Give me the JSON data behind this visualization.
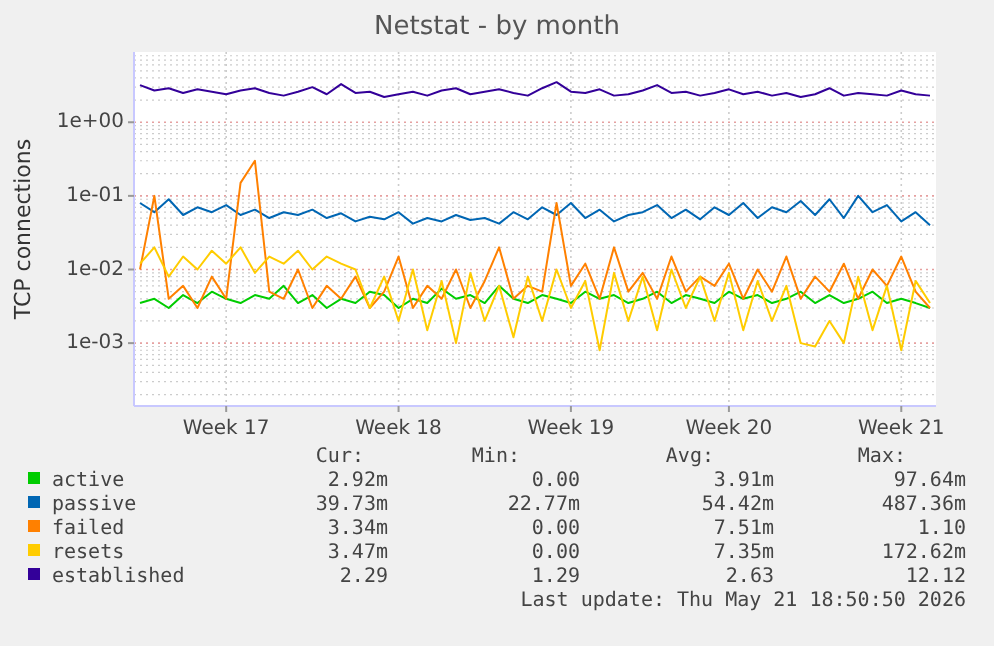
{
  "chart_data": {
    "type": "line",
    "title": "Netstat - by month",
    "ylabel": "TCP connections",
    "log": "y",
    "grid": true,
    "legend": "bottom",
    "ylim": [
      0.00014,
      9
    ],
    "yticks": [
      {
        "value": 0.001,
        "label": "1e-03"
      },
      {
        "value": 0.01,
        "label": "1e-02"
      },
      {
        "value": 0.1,
        "label": "1e-01"
      },
      {
        "value": 1,
        "label": "1e+00"
      }
    ],
    "categories": [
      null,
      null,
      null,
      null,
      null,
      null,
      "Week 17",
      null,
      null,
      null,
      null,
      null,
      null,
      null,
      null,
      null,
      null,
      null,
      "Week 18",
      null,
      null,
      null,
      null,
      null,
      null,
      null,
      null,
      null,
      null,
      null,
      "Week 19",
      null,
      null,
      null,
      null,
      null,
      null,
      null,
      null,
      null,
      null,
      "Week 20",
      null,
      null,
      null,
      null,
      null,
      null,
      null,
      null,
      null,
      null,
      null,
      "Week 21",
      null,
      null
    ],
    "series": [
      {
        "name": "active",
        "color": "#00cc00",
        "values": [
          0.0035,
          0.004,
          0.003,
          0.0045,
          0.0035,
          0.005,
          0.004,
          0.0035,
          0.0045,
          0.004,
          0.006,
          0.0035,
          0.0045,
          0.003,
          0.004,
          0.0035,
          0.005,
          0.0045,
          0.003,
          0.004,
          0.0035,
          0.0055,
          0.004,
          0.0045,
          0.0035,
          0.006,
          0.004,
          0.0035,
          0.0045,
          0.004,
          0.0035,
          0.005,
          0.004,
          0.0045,
          0.0035,
          0.004,
          0.005,
          0.0035,
          0.0045,
          0.004,
          0.0035,
          0.005,
          0.004,
          0.0045,
          0.0035,
          0.004,
          0.005,
          0.0035,
          0.0045,
          0.0035,
          0.004,
          0.005,
          0.0035,
          0.004,
          0.0035,
          0.003
        ]
      },
      {
        "name": "passive",
        "color": "#0066b3",
        "values": [
          0.08,
          0.06,
          0.09,
          0.055,
          0.07,
          0.06,
          0.075,
          0.055,
          0.065,
          0.05,
          0.06,
          0.055,
          0.065,
          0.05,
          0.058,
          0.045,
          0.052,
          0.048,
          0.06,
          0.042,
          0.05,
          0.045,
          0.055,
          0.047,
          0.05,
          0.042,
          0.06,
          0.048,
          0.07,
          0.055,
          0.08,
          0.05,
          0.065,
          0.045,
          0.055,
          0.06,
          0.075,
          0.05,
          0.065,
          0.048,
          0.07,
          0.055,
          0.08,
          0.05,
          0.07,
          0.06,
          0.085,
          0.055,
          0.09,
          0.05,
          0.1,
          0.06,
          0.075,
          0.045,
          0.06,
          0.04
        ]
      },
      {
        "name": "failed",
        "color": "#ff8000",
        "values": [
          0.01,
          0.1,
          0.004,
          0.006,
          0.003,
          0.008,
          0.004,
          0.15,
          0.3,
          0.005,
          0.004,
          0.01,
          0.003,
          0.006,
          0.004,
          0.008,
          0.003,
          0.005,
          0.015,
          0.003,
          0.006,
          0.004,
          0.01,
          0.003,
          0.007,
          0.02,
          0.004,
          0.006,
          0.005,
          0.08,
          0.006,
          0.012,
          0.004,
          0.02,
          0.005,
          0.009,
          0.004,
          0.015,
          0.005,
          0.008,
          0.006,
          0.012,
          0.004,
          0.01,
          0.005,
          0.015,
          0.004,
          0.008,
          0.005,
          0.012,
          0.004,
          0.01,
          0.006,
          0.015,
          0.005,
          0.003
        ]
      },
      {
        "name": "resets",
        "color": "#ffcc00",
        "values": [
          0.012,
          0.02,
          0.008,
          0.015,
          0.01,
          0.018,
          0.012,
          0.02,
          0.009,
          0.015,
          0.012,
          0.018,
          0.01,
          0.015,
          0.012,
          0.01,
          0.003,
          0.008,
          0.002,
          0.01,
          0.0015,
          0.007,
          0.001,
          0.009,
          0.002,
          0.006,
          0.0012,
          0.008,
          0.002,
          0.01,
          0.003,
          0.007,
          0.0008,
          0.009,
          0.002,
          0.008,
          0.0015,
          0.01,
          0.003,
          0.008,
          0.002,
          0.009,
          0.0015,
          0.007,
          0.002,
          0.006,
          0.001,
          0.0009,
          0.002,
          0.001,
          0.008,
          0.0015,
          0.006,
          0.0008,
          0.007,
          0.0035
        ]
      },
      {
        "name": "established",
        "color": "#330099",
        "values": [
          3.2,
          2.7,
          2.9,
          2.5,
          2.8,
          2.6,
          2.4,
          2.7,
          2.9,
          2.5,
          2.3,
          2.6,
          3.0,
          2.4,
          3.3,
          2.5,
          2.6,
          2.2,
          2.4,
          2.6,
          2.3,
          2.7,
          2.9,
          2.4,
          2.6,
          2.8,
          2.5,
          2.3,
          2.9,
          3.5,
          2.6,
          2.5,
          2.8,
          2.3,
          2.4,
          2.7,
          3.2,
          2.5,
          2.6,
          2.3,
          2.5,
          2.8,
          2.4,
          2.6,
          2.3,
          2.5,
          2.2,
          2.4,
          2.9,
          2.3,
          2.5,
          2.4,
          2.3,
          2.7,
          2.4,
          2.3
        ]
      }
    ],
    "annotations": [
      "Cur:",
      "Min:",
      "Avg:",
      "Max:",
      "2.92m",
      "0.00",
      "3.91m",
      "97.64m",
      "39.73m",
      "22.77m",
      "54.42m",
      "487.36m",
      "3.34m",
      "0.00",
      "7.51m",
      "1.10",
      "3.47m",
      "0.00",
      "7.35m",
      "172.62m",
      "2.29",
      "1.29",
      "2.63",
      "12.12",
      "Last update: Thu May 21 18:50:50 2026"
    ]
  }
}
